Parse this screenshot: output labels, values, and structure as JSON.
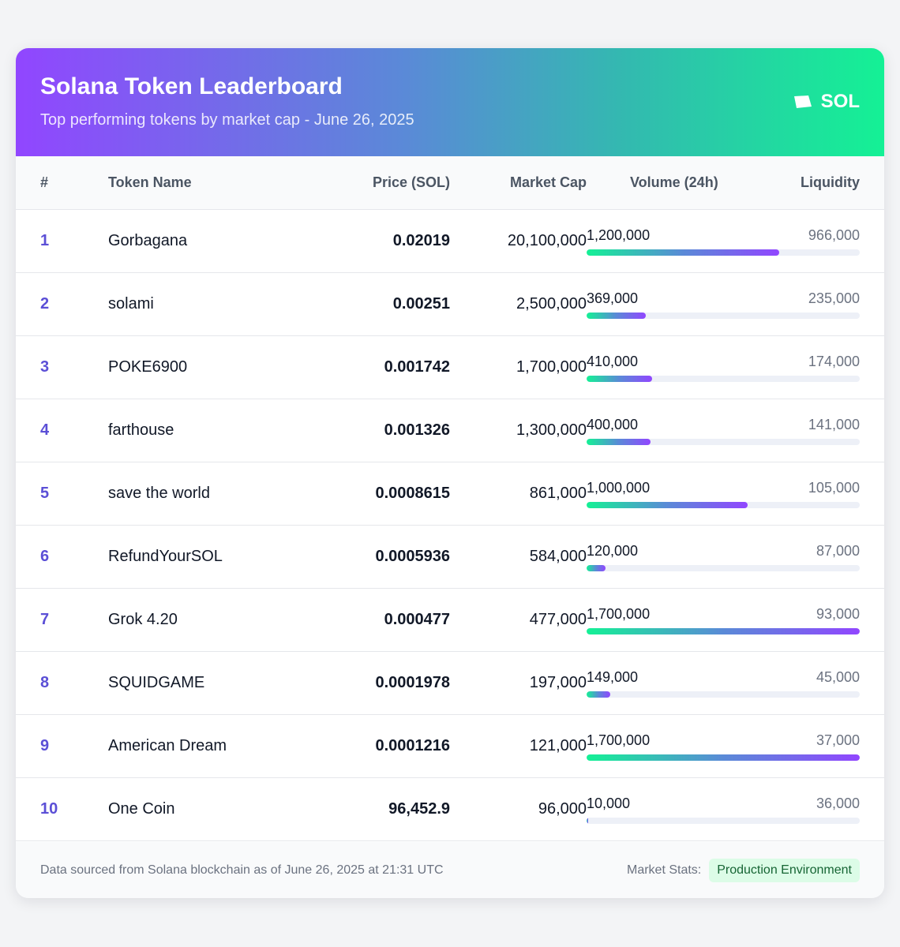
{
  "header": {
    "title": "Solana Token Leaderboard",
    "subtitle": "Top performing tokens by market cap - June 26, 2025",
    "badge_label": "SOL",
    "badge_icon": "solana-logo-icon"
  },
  "colors": {
    "gradient_start": "#9146ff",
    "gradient_end": "#14f195",
    "rank": "#5b4fd6",
    "badge_bg": "#dcfce7",
    "badge_text": "#166534"
  },
  "table": {
    "columns": [
      "#",
      "Token Name",
      "Price (SOL)",
      "Market Cap",
      "Volume (24h)",
      "Liquidity"
    ],
    "volume_scale_max": 1700000,
    "rows": [
      {
        "rank": "1",
        "name": "Gorbagana",
        "price": "0.02019",
        "market_cap": "20,100,000",
        "volume": "1,200,000",
        "volume_value": 1200000,
        "liquidity": "966,000"
      },
      {
        "rank": "2",
        "name": "solami",
        "price": "0.00251",
        "market_cap": "2,500,000",
        "volume": "369,000",
        "volume_value": 369000,
        "liquidity": "235,000"
      },
      {
        "rank": "3",
        "name": "POKE6900",
        "price": "0.001742",
        "market_cap": "1,700,000",
        "volume": "410,000",
        "volume_value": 410000,
        "liquidity": "174,000"
      },
      {
        "rank": "4",
        "name": "farthouse",
        "price": "0.001326",
        "market_cap": "1,300,000",
        "volume": "400,000",
        "volume_value": 400000,
        "liquidity": "141,000"
      },
      {
        "rank": "5",
        "name": "save the world",
        "price": "0.0008615",
        "market_cap": "861,000",
        "volume": "1,000,000",
        "volume_value": 1000000,
        "liquidity": "105,000"
      },
      {
        "rank": "6",
        "name": "RefundYourSOL",
        "price": "0.0005936",
        "market_cap": "584,000",
        "volume": "120,000",
        "volume_value": 120000,
        "liquidity": "87,000"
      },
      {
        "rank": "7",
        "name": "Grok 4.20",
        "price": "0.000477",
        "market_cap": "477,000",
        "volume": "1,700,000",
        "volume_value": 1700000,
        "liquidity": "93,000"
      },
      {
        "rank": "8",
        "name": "SQUIDGAME",
        "price": "0.0001978",
        "market_cap": "197,000",
        "volume": "149,000",
        "volume_value": 149000,
        "liquidity": "45,000"
      },
      {
        "rank": "9",
        "name": "American Dream",
        "price": "0.0001216",
        "market_cap": "121,000",
        "volume": "1,700,000",
        "volume_value": 1700000,
        "liquidity": "37,000"
      },
      {
        "rank": "10",
        "name": "One Coin",
        "price": "96,452.9",
        "market_cap": "96,000",
        "volume": "10,000",
        "volume_value": 10000,
        "liquidity": "36,000"
      }
    ]
  },
  "footer": {
    "note": "Data sourced from Solana blockchain as of June 26, 2025 at 21:31 UTC",
    "stats_label": "Market Stats:",
    "environment_badge": "Production Environment"
  }
}
